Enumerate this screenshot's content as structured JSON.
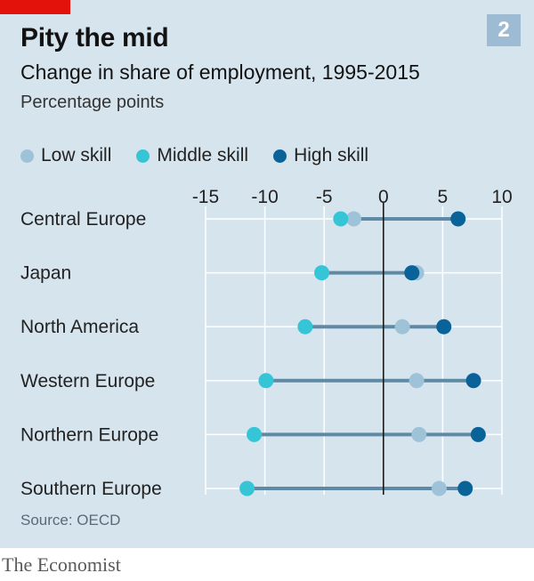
{
  "header": {
    "title": "Pity the mid",
    "badge": "2",
    "subtitle": "Change in share of employment, 1995-2015",
    "units": "Percentage points"
  },
  "footer": {
    "source": "Source: OECD",
    "brand": "The Economist"
  },
  "colors": {
    "panel": "#d6e4ed",
    "accent_red": "#e3120b",
    "low_skill": "#9ec2d8",
    "middle_skill": "#36c5d6",
    "high_skill": "#0a6398",
    "connector": "#5f8aa6"
  },
  "chart_data": {
    "type": "scatter",
    "title": "Pity the mid",
    "subtitle": "Change in share of employment, 1995-2015",
    "ylabel": "Percentage points",
    "xlim": [
      -15,
      10
    ],
    "x_ticks": [
      "-15",
      "-10",
      "-5",
      "0",
      "5",
      "10"
    ],
    "x_tick_values": [
      -15,
      -10,
      -5,
      0,
      5,
      10
    ],
    "grid": true,
    "legend_position": "top",
    "categories": [
      "Central Europe",
      "Japan",
      "North America",
      "Western Europe",
      "Northern Europe",
      "Southern Europe"
    ],
    "series": [
      {
        "name": "Low skill",
        "color": "#9ec2d8",
        "values": [
          -2.5,
          2.8,
          1.6,
          2.8,
          3.0,
          4.7
        ]
      },
      {
        "name": "Middle skill",
        "color": "#36c5d6",
        "values": [
          -3.6,
          -5.2,
          -6.6,
          -9.9,
          -10.9,
          -11.5
        ]
      },
      {
        "name": "High skill",
        "color": "#0a6398",
        "values": [
          6.3,
          2.4,
          5.1,
          7.6,
          8.0,
          6.9
        ]
      }
    ]
  }
}
